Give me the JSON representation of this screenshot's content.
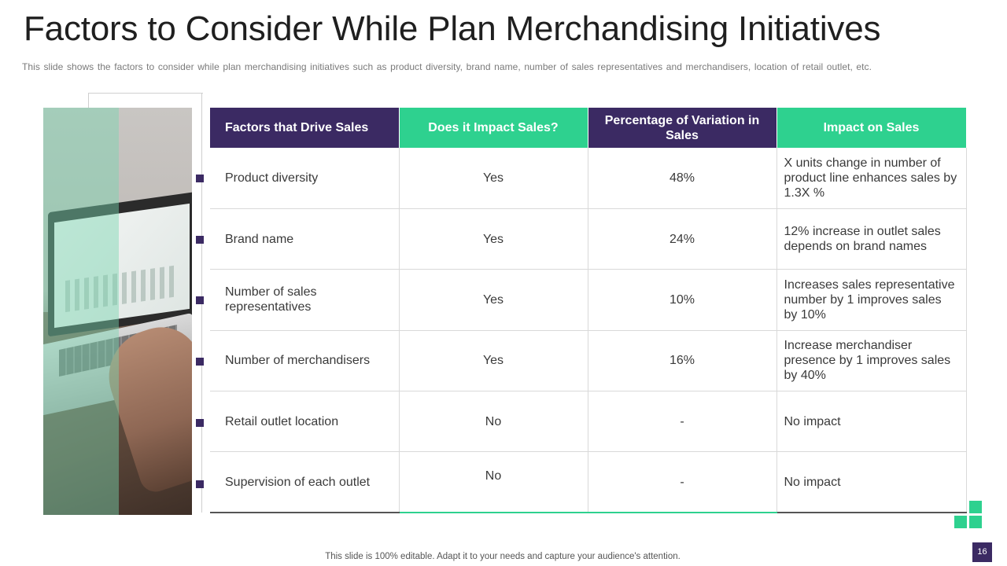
{
  "slide": {
    "title": "Factors to Consider While Plan Merchandising Initiatives",
    "subtitle": "This slide shows the factors to consider while plan merchandising initiatives such as product diversity, brand name, number of sales representatives  and merchandisers, location of retail outlet, etc.",
    "footer": "This slide is 100% editable. Adapt it to your needs and capture your audience's attention.",
    "page_number": "16"
  },
  "colors": {
    "header_dark": "#3b2a63",
    "header_green": "#2ed18f",
    "text": "#3a3a3a"
  },
  "table": {
    "headers": [
      "Factors that Drive Sales",
      "Does it Impact Sales?",
      "Percentage of Variation in Sales",
      "Impact on Sales"
    ],
    "rows": [
      [
        "Product diversity",
        "Yes",
        "48%",
        "X units change in number of product line enhances sales by 1.3X %"
      ],
      [
        "Brand name",
        "Yes",
        "24%",
        "12% increase in outlet sales depends on brand names"
      ],
      [
        "Number of sales representatives",
        "Yes",
        "10%",
        "Increases sales representative number by 1 improves sales by 10%"
      ],
      [
        "Number of merchandisers",
        "Yes",
        "16%",
        "Increase merchandiser presence by 1 improves sales by 40%"
      ],
      [
        "Retail outlet location",
        "No",
        "-",
        "No impact"
      ],
      [
        "Supervision of each outlet",
        "No",
        "-",
        "No impact"
      ]
    ]
  },
  "image": {
    "icon": "laptop-work-photo"
  }
}
